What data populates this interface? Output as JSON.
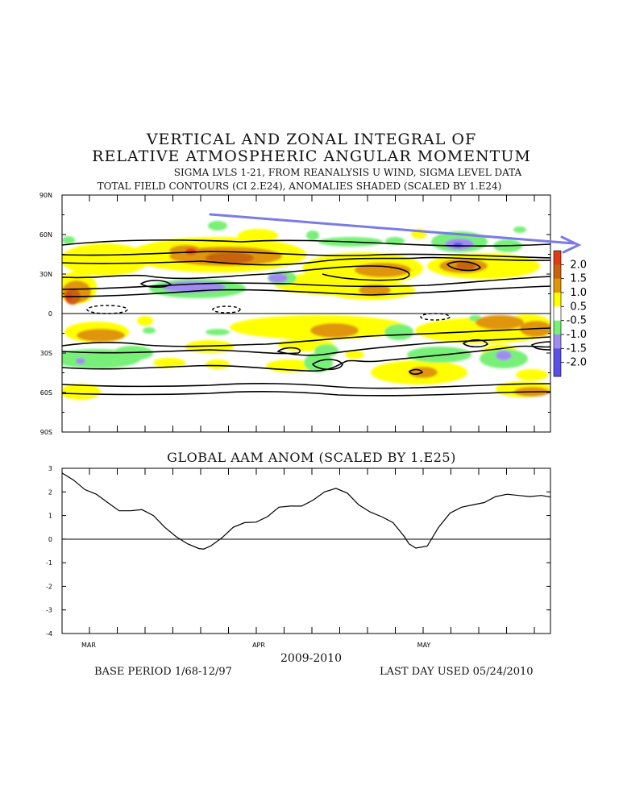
{
  "titles": {
    "line1": "VERTICAL AND ZONAL INTEGRAL OF",
    "line2": "RELATIVE ATMOSPHERIC ANGULAR MOMENTUM",
    "line3": "SIGMA LVLS 1-21, FROM REANALYSIS U WIND, SIGMA LEVEL DATA",
    "line4": "TOTAL FIELD CONTOURS (CI 2.E24),  ANOMALIES SHADED (SCALED BY 1.E24)",
    "bottom_title": "GLOBAL AAM ANOM (SCALED BY 1.E25)"
  },
  "footer": {
    "years": "2009-2010",
    "base_period": "BASE PERIOD  1/68-12/97",
    "last_day": "LAST DAY USED 05/24/2010"
  },
  "colors": {
    "yellow": "#ffff00",
    "orange": "#e0950a",
    "dark_orange": "#c86410",
    "red": "#e03c14",
    "green": "#78f078",
    "lavender": "#a08cf0",
    "blue_purple": "#5a50e6",
    "arrow": "#7b7be6"
  },
  "chart_data": [
    {
      "type": "heatmap",
      "title": "TOTAL FIELD CONTOURS (CI 2.E24),  ANOMALIES SHADED (SCALED BY 1.E24)",
      "y_ticks": [
        "90N",
        "60N",
        "30N",
        "0",
        "30S",
        "60S",
        "90S"
      ],
      "y_range": [
        "90S",
        "90N"
      ],
      "colorbar": {
        "labels": [
          "2.0",
          "1.5",
          "1.0",
          "0.5",
          "-0.5",
          "-1.0",
          "-1.5",
          "-2.0"
        ],
        "colors": [
          "#e03c14",
          "#c86410",
          "#e0950a",
          "#ffff00",
          "#ffffff",
          "#78f078",
          "#a08cf0",
          "#5a50e6"
        ]
      },
      "annotation": "hand-drawn arrow from upper left toward upper right pointing off the plot"
    },
    {
      "type": "line",
      "title": "GLOBAL AAM ANOM (SCALED BY 1.E25)",
      "x_labels": [
        "MAR",
        "APR",
        "MAY"
      ],
      "xlabel": "2009-2010",
      "ylim": [
        -4,
        3
      ],
      "y_ticks": [
        "3",
        "2",
        "1",
        "0",
        "-1",
        "-2",
        "-3",
        "-4"
      ],
      "series": [
        {
          "x": [
            0,
            5,
            10,
            15,
            20,
            25,
            30,
            35,
            40,
            45,
            50,
            55,
            60,
            62,
            65,
            70,
            75,
            80,
            85,
            90,
            95,
            100,
            105,
            110,
            115,
            120,
            125,
            130,
            135,
            140,
            145,
            150,
            152,
            155,
            160,
            165,
            170,
            175,
            180,
            185,
            190,
            195,
            200,
            205,
            210,
            214
          ],
          "values": [
            2.8,
            2.5,
            2.1,
            1.9,
            1.55,
            1.2,
            1.2,
            1.25,
            1.0,
            0.5,
            0.1,
            -0.2,
            -0.4,
            -0.42,
            -0.3,
            0.05,
            0.5,
            0.7,
            0.72,
            0.95,
            1.35,
            1.4,
            1.4,
            1.65,
            2.0,
            2.15,
            1.95,
            1.45,
            1.15,
            0.95,
            0.7,
            0.1,
            -0.2,
            -0.38,
            -0.3,
            0.5,
            1.1,
            1.35,
            1.45,
            1.55,
            1.8,
            1.9,
            1.85,
            1.8,
            1.85,
            1.78
          ]
        }
      ]
    }
  ]
}
